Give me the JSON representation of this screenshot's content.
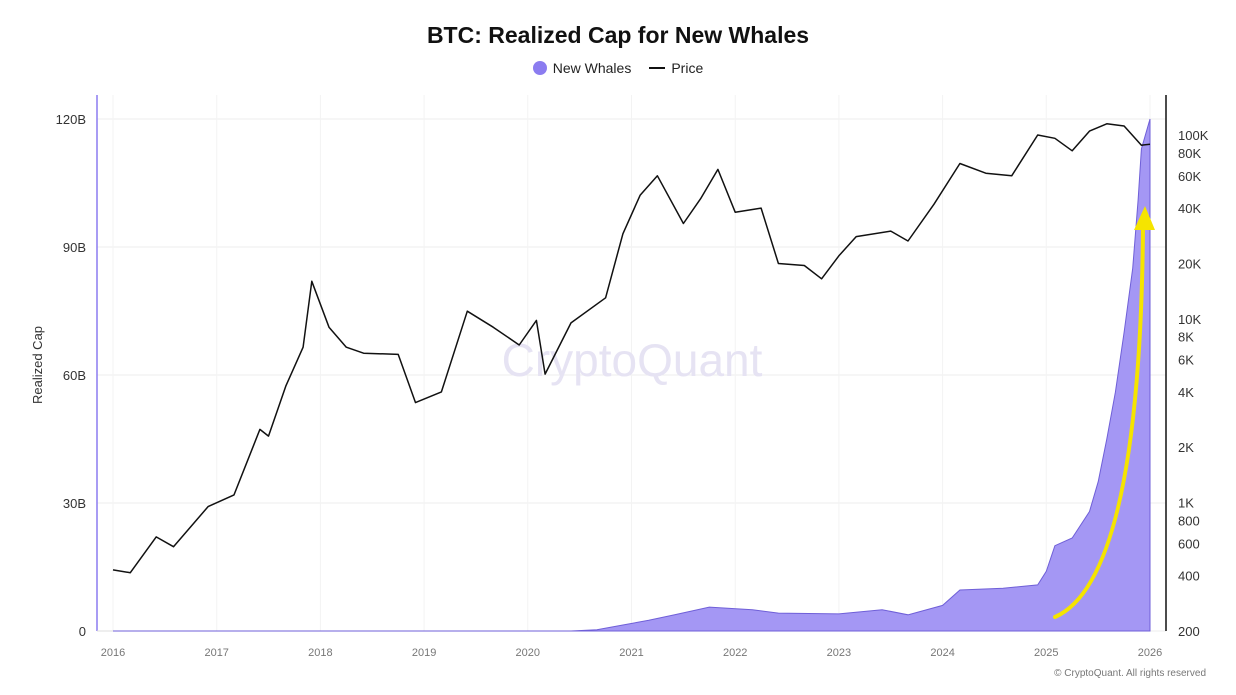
{
  "chart_data": {
    "type": "area",
    "title": "BTC: Realized Cap for New Whales",
    "legend": [
      {
        "name": "New Whales",
        "color": "#8b7cf0"
      },
      {
        "name": "Price",
        "color": "#111111"
      }
    ],
    "legend_position": "top",
    "ylabel": "Realized Cap",
    "y_left": {
      "range": [
        0,
        120000000000
      ],
      "ticks": [
        0,
        30000000000,
        60000000000,
        90000000000,
        120000000000
      ],
      "tick_labels": [
        "0",
        "30B",
        "60B",
        "90B",
        "120B"
      ]
    },
    "y_right": {
      "scale": "log",
      "range": [
        200,
        100000
      ],
      "ticks": [
        200,
        400,
        600,
        800,
        1000,
        2000,
        4000,
        6000,
        8000,
        10000,
        20000,
        40000,
        60000,
        80000,
        100000
      ],
      "tick_labels": [
        "200",
        "400",
        "600",
        "800",
        "1K",
        "2K",
        "4K",
        "6K",
        "8K",
        "10K",
        "20K",
        "40K",
        "60K",
        "80K",
        "100K"
      ]
    },
    "x": {
      "range": [
        "2016-01",
        "2026-01"
      ],
      "tick_labels": [
        "2016",
        "2017",
        "2018",
        "2019",
        "2020",
        "2021",
        "2022",
        "2023",
        "2024",
        "2025",
        "2026"
      ]
    },
    "grid": true,
    "watermark": "CryptoQuant",
    "annotation": "yellow upward curved arrow along New Whales rise",
    "series": [
      {
        "name": "New Whales",
        "axis": "left",
        "unit": "B USD",
        "points": [
          [
            "2016-01",
            0
          ],
          [
            "2020-06",
            0
          ],
          [
            "2020-09",
            0.3
          ],
          [
            "2020-12",
            1.4
          ],
          [
            "2021-03",
            2.5
          ],
          [
            "2021-06",
            3.8
          ],
          [
            "2021-10",
            5.6
          ],
          [
            "2022-03",
            5.0
          ],
          [
            "2022-06",
            4.2
          ],
          [
            "2023-01",
            4.0
          ],
          [
            "2023-06",
            5.0
          ],
          [
            "2023-09",
            3.8
          ],
          [
            "2024-01",
            6.0
          ],
          [
            "2024-03",
            9.6
          ],
          [
            "2024-08",
            10.0
          ],
          [
            "2024-12",
            10.8
          ],
          [
            "2025-01",
            14.0
          ],
          [
            "2025-02",
            20.0
          ],
          [
            "2025-04",
            21.8
          ],
          [
            "2025-06",
            28.0
          ],
          [
            "2025-07",
            35.0
          ],
          [
            "2025-08",
            45.0
          ],
          [
            "2025-09",
            56.0
          ],
          [
            "2025-10",
            70.0
          ],
          [
            "2025-11",
            85.0
          ],
          [
            "2025-11-20",
            101.0
          ],
          [
            "2025-12",
            113.0
          ],
          [
            "2026-01",
            120.0
          ]
        ]
      },
      {
        "name": "Price",
        "axis": "right",
        "unit": "USD",
        "points": [
          [
            "2016-01",
            430
          ],
          [
            "2016-03",
            415
          ],
          [
            "2016-06",
            650
          ],
          [
            "2016-08",
            575
          ],
          [
            "2016-12",
            950
          ],
          [
            "2017-03",
            1100
          ],
          [
            "2017-06",
            2500
          ],
          [
            "2017-07",
            2300
          ],
          [
            "2017-09",
            4300
          ],
          [
            "2017-11",
            7000
          ],
          [
            "2017-12",
            16000
          ],
          [
            "2018-02",
            9000
          ],
          [
            "2018-04",
            7000
          ],
          [
            "2018-06",
            6500
          ],
          [
            "2018-10",
            6400
          ],
          [
            "2018-12",
            3500
          ],
          [
            "2019-03",
            4000
          ],
          [
            "2019-06",
            11000
          ],
          [
            "2019-09",
            9000
          ],
          [
            "2019-12",
            7200
          ],
          [
            "2020-02",
            9800
          ],
          [
            "2020-03",
            5000
          ],
          [
            "2020-06",
            9500
          ],
          [
            "2020-10",
            13000
          ],
          [
            "2020-12",
            29000
          ],
          [
            "2021-02",
            47000
          ],
          [
            "2021-04",
            60000
          ],
          [
            "2021-07",
            33000
          ],
          [
            "2021-09",
            45000
          ],
          [
            "2021-11",
            65000
          ],
          [
            "2022-01",
            38000
          ],
          [
            "2022-04",
            40000
          ],
          [
            "2022-06",
            20000
          ],
          [
            "2022-09",
            19500
          ],
          [
            "2022-11",
            16500
          ],
          [
            "2023-01",
            22000
          ],
          [
            "2023-03",
            28000
          ],
          [
            "2023-07",
            30000
          ],
          [
            "2023-09",
            26500
          ],
          [
            "2023-12",
            42000
          ],
          [
            "2024-03",
            70000
          ],
          [
            "2024-06",
            62000
          ],
          [
            "2024-09",
            60000
          ],
          [
            "2024-12",
            100000
          ],
          [
            "2025-02",
            96000
          ],
          [
            "2025-04",
            82000
          ],
          [
            "2025-06",
            105000
          ],
          [
            "2025-08",
            115000
          ],
          [
            "2025-10",
            112000
          ],
          [
            "2025-12",
            88000
          ],
          [
            "2026-01",
            89000
          ]
        ]
      }
    ]
  },
  "footer": {
    "copyright": "© CryptoQuant. All rights reserved"
  }
}
